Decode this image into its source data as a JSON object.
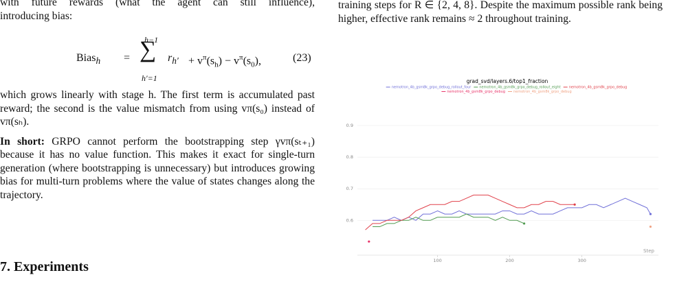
{
  "left": {
    "intro": [
      "with future rewards (what the agent can still influence),",
      "introducing bias:"
    ],
    "equation": {
      "lhs": "Bias",
      "lhs_sub": "h",
      "eq": "=",
      "sum_top": "h−1",
      "sum_bottom": "h′=1",
      "body": "r",
      "body_sub": "h′",
      "rest": [
        "+ v",
        "π",
        "(s",
        "h",
        ") − v",
        "π",
        "(s",
        "0",
        "),"
      ],
      "number": "(23)"
    },
    "paragraph1": "which grows linearly with stage h. The first term is accumulated past reward; the second is the value mismatch from using vπ(s₀) instead of vπ(sₕ).",
    "short_label": "In short:",
    "paragraph2": "GRPO cannot perform the bootstrapping step γvπ(sₜ₊₁) because it has no value function. This makes it exact for single-turn generation (where bootstrapping is unnecessary) but introduces growing bias for multi-turn problems where the value of states changes along the trajectory.",
    "section": "7. Experiments"
  },
  "right": {
    "paragraph": "training steps for R ∈ {2, 4, 8}. Despite the maximum possible rank being higher, effective rank remains ≈ 2 throughout training."
  },
  "chart_data": {
    "type": "line",
    "title": "grad_svd/layers.6/top1_fraction",
    "x_label": "Step",
    "xlim": [
      -11,
      406
    ],
    "ylim": [
      0.49,
      0.95
    ],
    "xticks": [
      100,
      200,
      300
    ],
    "yticks": [
      0.6,
      0.7,
      0.8,
      0.9
    ],
    "grid": true,
    "series": [
      {
        "name": "nemotron_4b_gsm8k_grpo_debug_rollout_four",
        "color": "#6f6fd8",
        "x": [
          10,
          20,
          30,
          40,
          50,
          60,
          70,
          80,
          90,
          100,
          110,
          120,
          130,
          140,
          150,
          160,
          170,
          180,
          190,
          200,
          210,
          220,
          230,
          240,
          250,
          260,
          270,
          280,
          290,
          300,
          310,
          320,
          330,
          340,
          350,
          360,
          370,
          380,
          390,
          395
        ],
        "values": [
          0.6,
          0.6,
          0.6,
          0.61,
          0.6,
          0.61,
          0.6,
          0.62,
          0.62,
          0.63,
          0.62,
          0.62,
          0.63,
          0.62,
          0.62,
          0.62,
          0.62,
          0.62,
          0.63,
          0.63,
          0.62,
          0.62,
          0.63,
          0.62,
          0.62,
          0.62,
          0.63,
          0.64,
          0.64,
          0.64,
          0.65,
          0.65,
          0.64,
          0.65,
          0.66,
          0.67,
          0.66,
          0.65,
          0.64,
          0.62
        ]
      },
      {
        "name": "nemotron_4b_gsm8k_grpo_debug_rollout_eight",
        "color": "#4f9a4f",
        "x": [
          10,
          20,
          30,
          40,
          50,
          60,
          70,
          80,
          90,
          100,
          110,
          120,
          130,
          140,
          150,
          160,
          170,
          180,
          190,
          200,
          210,
          220
        ],
        "values": [
          0.58,
          0.58,
          0.59,
          0.59,
          0.6,
          0.6,
          0.61,
          0.6,
          0.6,
          0.61,
          0.61,
          0.61,
          0.61,
          0.62,
          0.61,
          0.61,
          0.61,
          0.6,
          0.61,
          0.6,
          0.6,
          0.59
        ]
      },
      {
        "name": "nemotron_4b_gsm8k_grpo_debug",
        "color": "#e0404a",
        "x": [
          0,
          10,
          20,
          30,
          40,
          50,
          60,
          70,
          80,
          90,
          100,
          110,
          120,
          130,
          140,
          150,
          160,
          170,
          180,
          190,
          200,
          210,
          220,
          230,
          240,
          250,
          260,
          270,
          280,
          290
        ],
        "values": [
          0.57,
          0.59,
          0.59,
          0.6,
          0.6,
          0.6,
          0.61,
          0.63,
          0.64,
          0.65,
          0.65,
          0.65,
          0.66,
          0.66,
          0.67,
          0.68,
          0.68,
          0.68,
          0.67,
          0.66,
          0.65,
          0.64,
          0.64,
          0.65,
          0.65,
          0.66,
          0.66,
          0.65,
          0.65,
          0.65
        ]
      },
      {
        "name": "nemotron_4b_gsm8k_grpo_debug",
        "color": "#e8356a",
        "x": [
          5
        ],
        "values": [
          0.533
        ]
      },
      {
        "name": "nemotron_4b_gsm8k_grpo_debug",
        "color": "#f0a486",
        "x": [
          395
        ],
        "values": [
          0.58
        ]
      }
    ]
  }
}
